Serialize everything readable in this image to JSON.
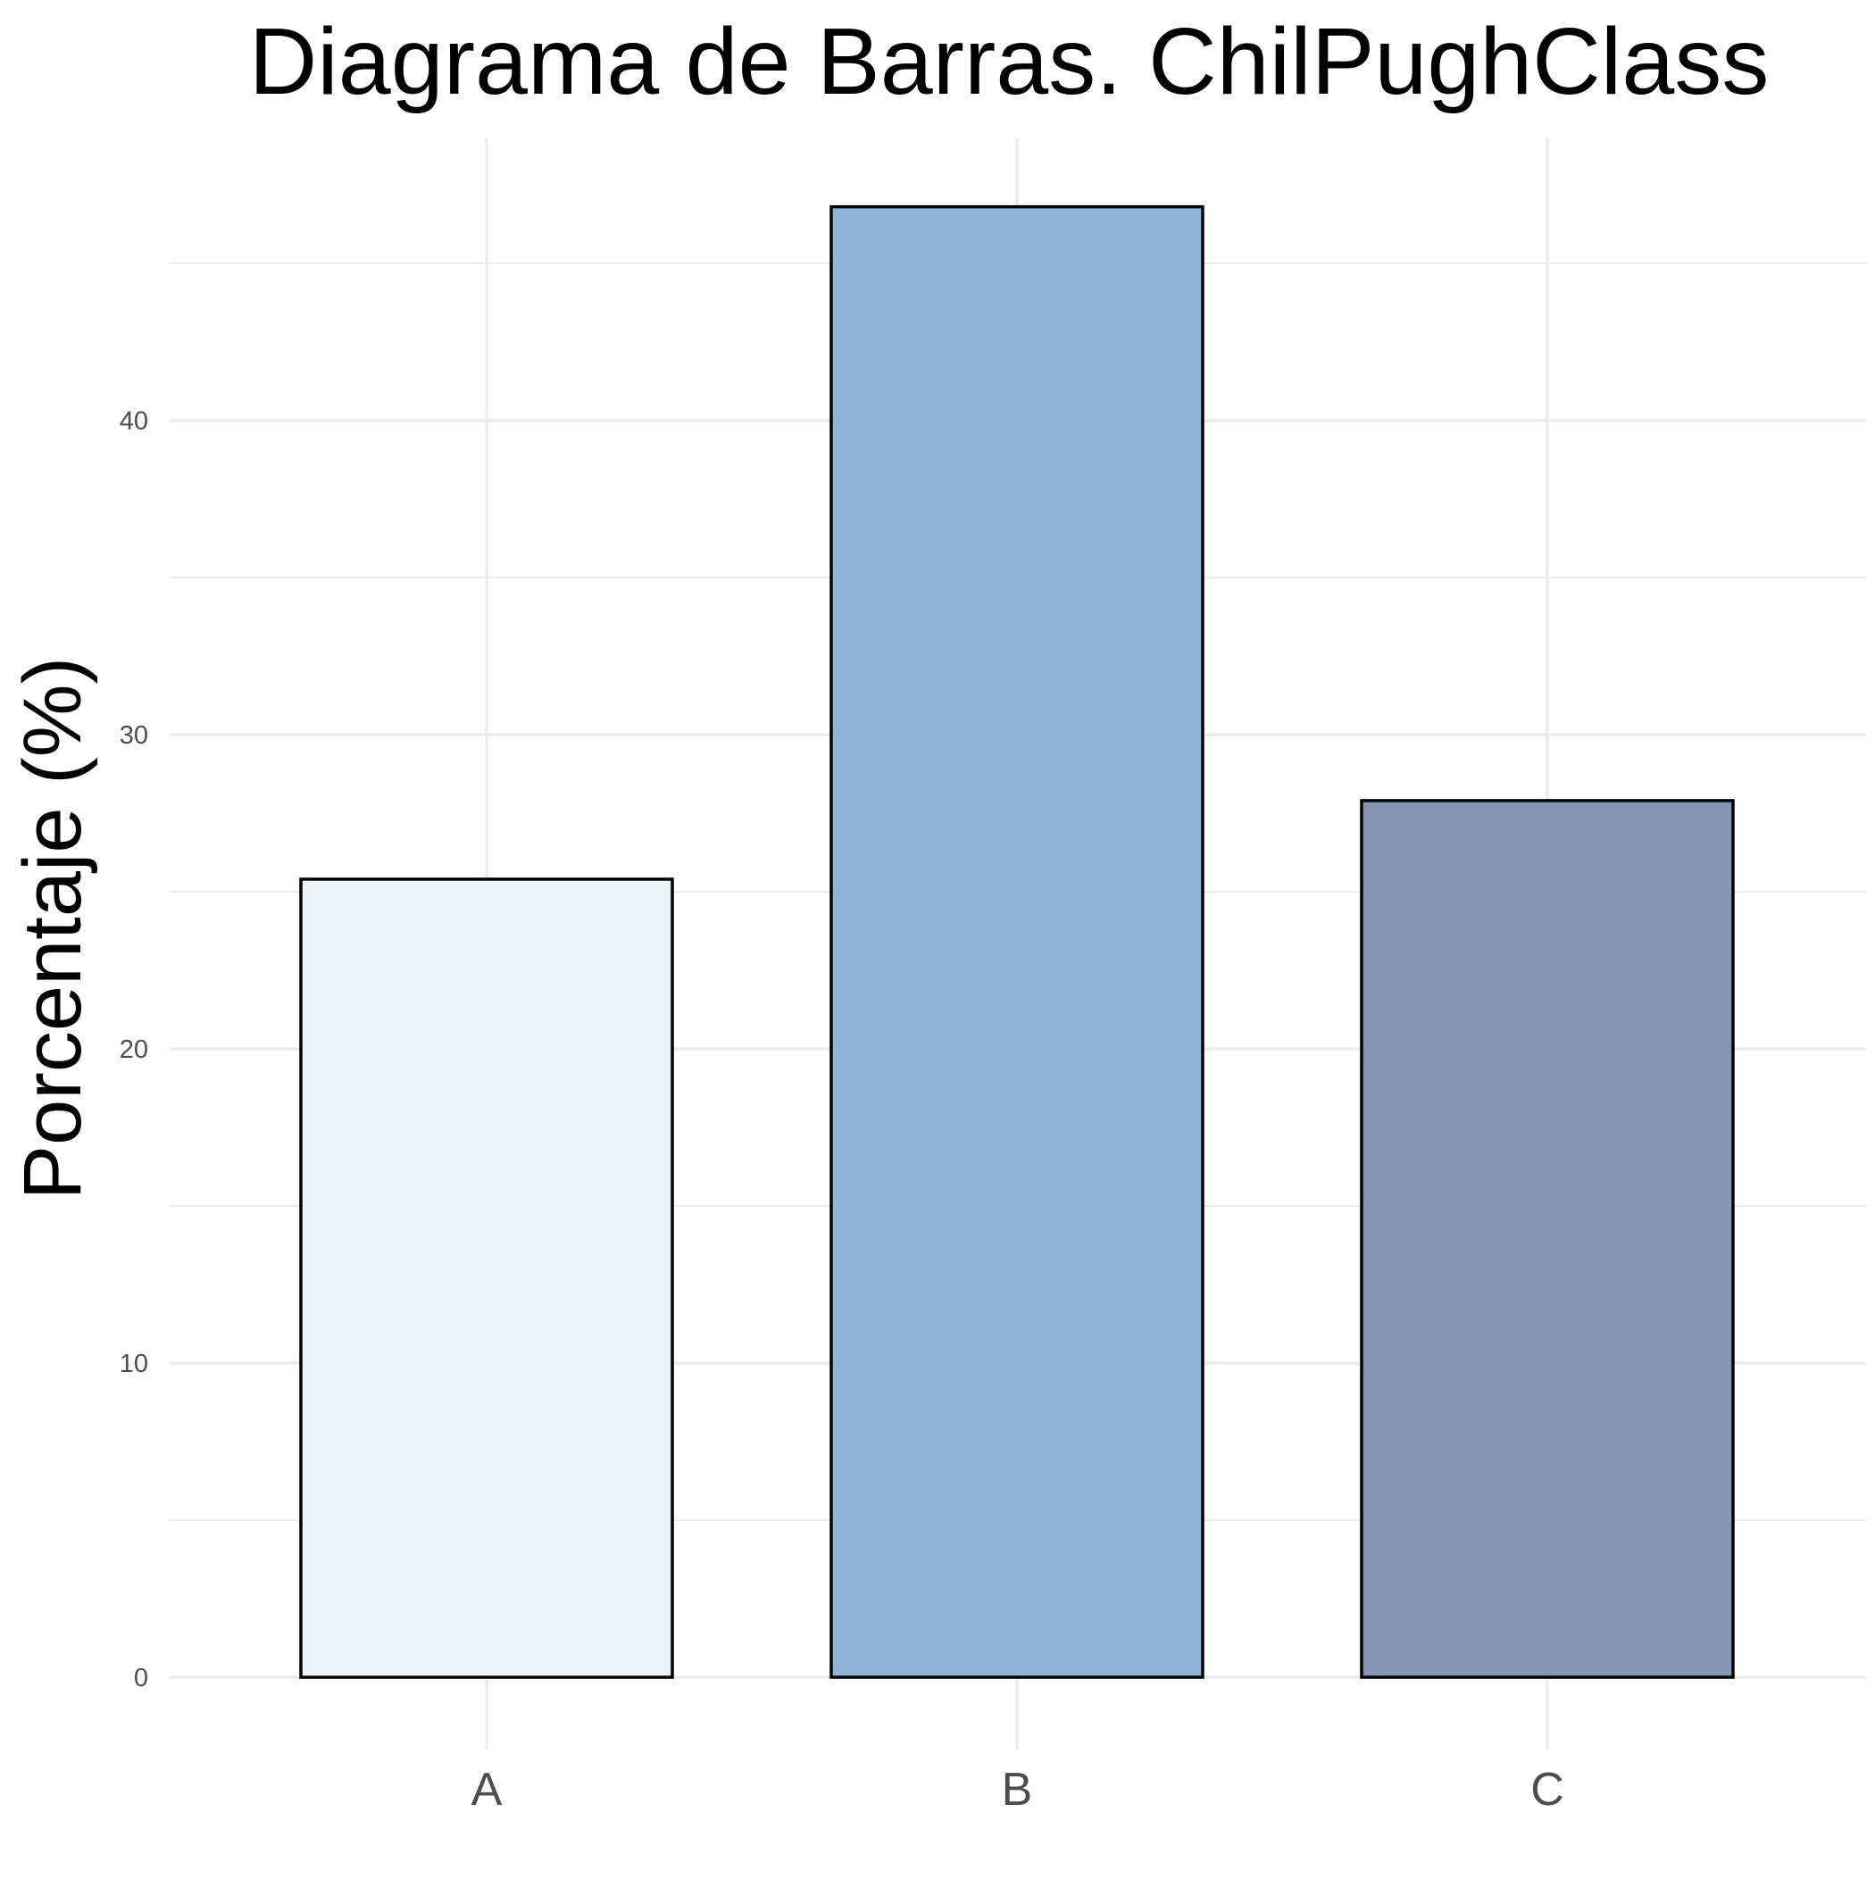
{
  "chart_data": {
    "type": "bar",
    "title": "Diagrama de Barras. ChilPughClass",
    "xlabel": "",
    "ylabel": "Porcentaje (%)",
    "categories": [
      "A",
      "B",
      "C"
    ],
    "values": [
      25.4,
      46.8,
      27.9
    ],
    "colors": [
      "#EBF3FB",
      "#91B5D9",
      "#8496B3"
    ],
    "ylim": [
      0,
      48
    ],
    "yticks": [
      0,
      10,
      20,
      30,
      40
    ],
    "ytick_labels": [
      "0",
      "10",
      "20",
      "30",
      "40"
    ],
    "grid": true,
    "legend": "none"
  }
}
